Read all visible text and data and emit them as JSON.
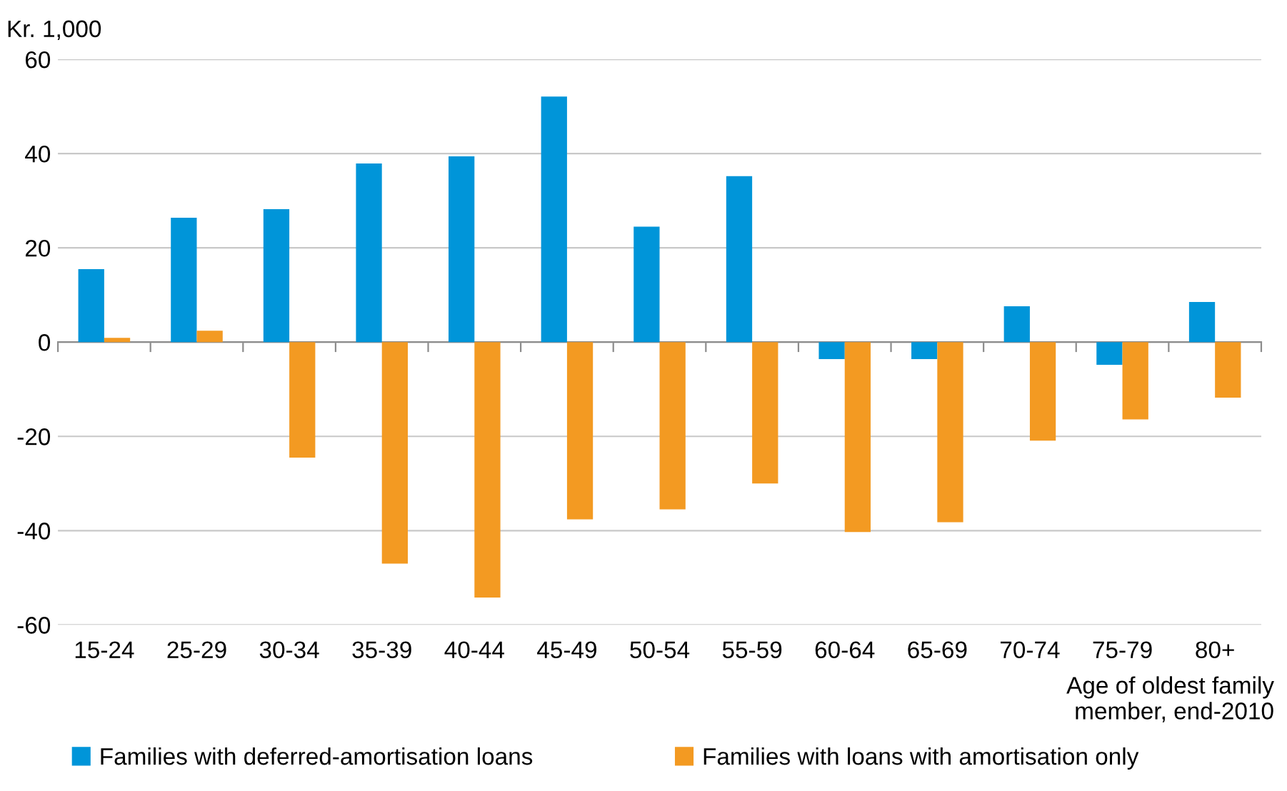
{
  "chart_data": {
    "type": "bar",
    "ylabel": "Kr. 1,000",
    "xlabel": "Age of oldest family\nmember, end-2010",
    "categories": [
      "15-24",
      "25-29",
      "30-34",
      "35-39",
      "40-44",
      "45-49",
      "50-54",
      "55-59",
      "60-64",
      "65-69",
      "70-74",
      "75-79",
      "80+"
    ],
    "series": [
      {
        "name": "Families with deferred-amortisation loans",
        "color": "#0095d9",
        "values": [
          15.5,
          26.4,
          28.2,
          37.9,
          39.4,
          52.1,
          24.5,
          35.2,
          -3.6,
          -3.6,
          7.6,
          -4.8,
          8.5
        ]
      },
      {
        "name": "Families with loans with amortisation only",
        "color": "#f39a22",
        "values": [
          0.9,
          2.4,
          -24.5,
          -47,
          -54.2,
          -37.6,
          -35.5,
          -30,
          -40.3,
          -38.2,
          -20.9,
          -16.4,
          -11.8
        ]
      }
    ],
    "ylim": [
      -60,
      60
    ],
    "yticks": [
      -60,
      -40,
      -20,
      0,
      20,
      40,
      60
    ],
    "grid": "y",
    "legend": "bottom"
  }
}
